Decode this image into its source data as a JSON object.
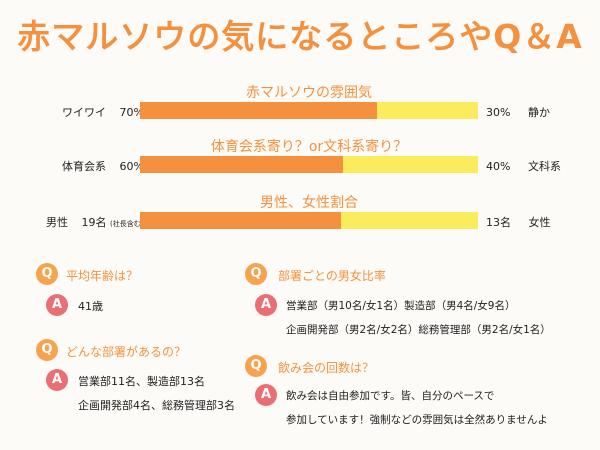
{
  "title": "赤マルソウの気になるところやQ＆A",
  "bars": [
    {
      "title": "赤マルソウの雰囲気",
      "left_label": "ワイワイ",
      "left_value": "70%",
      "right_value": "30%",
      "right_label": "静か",
      "fraction": 0.7
    },
    {
      "title": "体育会系寄り？or文科系寄り？",
      "left_label": "体育会系",
      "left_value": "60%",
      "right_value": "40%",
      "right_label": "文科系",
      "fraction": 0.6
    },
    {
      "title": "男性、女性割合",
      "left_label": "男性",
      "left_value": "19名",
      "left_note": "(社長含む)",
      "right_value": "13名",
      "right_label": "女性",
      "fraction": 0.594
    }
  ],
  "qa": [
    {
      "q_mark": "Q",
      "a_mark": "A",
      "question": "平均年齢は？",
      "answer": [
        "41歳"
      ]
    },
    {
      "q_mark": "Q",
      "a_mark": "A",
      "question": "どんな部署があるの？",
      "answer": [
        "営業部11名、製造部13名",
        "企画開発部4名、総務管理部3名"
      ]
    },
    {
      "q_mark": "Q",
      "a_mark": "A",
      "question": "部署ごとの男女比率",
      "answer": [
        "営業部（男10名/女1名）製造部（男4名/女9名）",
        "企画開発部（男2名/女2名）総務管理部（男2名/女1名）"
      ]
    },
    {
      "q_mark": "Q",
      "a_mark": "A",
      "question": "飲み会の回数は？",
      "answer": [
        "飲み会は自由参加です。皆、自分のペースで",
        "参加しています！強制などの雰囲気は全然ありませんよ"
      ]
    }
  ],
  "colors": {
    "accent": "#f5913e",
    "bar_rest": "#fbec5d",
    "q_badge": "#f7a24c",
    "a_badge": "#ea6f74"
  }
}
